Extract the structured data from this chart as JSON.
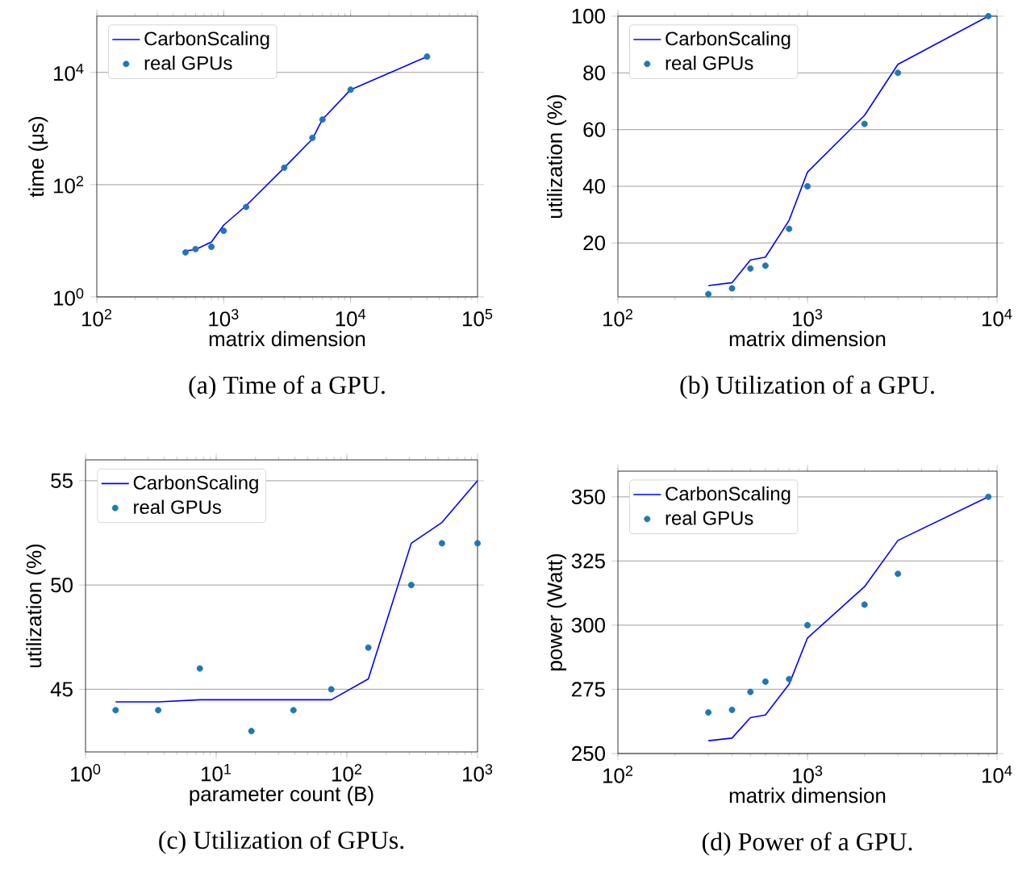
{
  "chart_data": [
    {
      "type": "line",
      "log": "xy",
      "grid": "y",
      "legend": "top left",
      "xlabel": "matrix dimension",
      "ylabel": "time (μs)",
      "annotations": [
        "(a)  Time of a GPU."
      ],
      "xlim": [
        100,
        100000
      ],
      "xticks": [
        {
          "value": 100,
          "label": "10$^{2}$"
        },
        {
          "value": 1000,
          "label": "10$^{3}$"
        },
        {
          "value": 10000,
          "label": "10$^{4}$"
        },
        {
          "value": 100000,
          "label": "10$^{5}$"
        }
      ],
      "ylim": [
        1,
        100000
      ],
      "yticks": [
        {
          "value": 1,
          "label": "10$^{0}$"
        },
        {
          "value": 100,
          "label": "10$^{2}$"
        },
        {
          "value": 10000,
          "label": "10$^{4}$"
        }
      ],
      "series": [
        {
          "name": "CarbonScaling",
          "color": "#0000ff",
          "marker": "none",
          "x": [
            500,
            600,
            800,
            1000,
            1500,
            3000,
            5000,
            6000,
            10000,
            40000
          ],
          "values": [
            6.6,
            7,
            9.5,
            19,
            42,
            200,
            650,
            1450,
            4900,
            19000
          ]
        },
        {
          "name": "real GPUs",
          "type": "scatter",
          "marker": "circle",
          "color": "#1f77b4",
          "x": [
            500,
            600,
            800,
            1000,
            1500,
            3000,
            5000,
            6000,
            10000,
            40000
          ],
          "values": [
            6.2,
            7.1,
            7.8,
            15,
            40,
            200,
            680,
            1440,
            4900,
            19000
          ]
        }
      ]
    },
    {
      "type": "line",
      "log": "x",
      "grid": "y",
      "legend": "top left",
      "xlabel": "matrix dimension",
      "ylabel": "utilization (%)",
      "annotations": [
        "(b)  Utilization of a GPU."
      ],
      "xlim": [
        100,
        10000
      ],
      "xticks": [
        {
          "value": 100,
          "label": "10$^{2}$"
        },
        {
          "value": 1000,
          "label": "10$^{3}$"
        },
        {
          "value": 10000,
          "label": "10$^{4}$"
        }
      ],
      "ylim": [
        1,
        100
      ],
      "yticks": [
        20,
        40,
        60,
        80,
        100
      ],
      "series": [
        {
          "name": "CarbonScaling",
          "color": "#0000ff",
          "marker": "none",
          "x": [
            300,
            400,
            500,
            600,
            800,
            1000,
            2000,
            3000,
            9000
          ],
          "values": [
            5,
            6,
            14,
            15,
            28,
            45,
            65,
            83,
            100
          ]
        },
        {
          "name": "real GPUs",
          "type": "scatter",
          "marker": "circle",
          "color": "#1f77b4",
          "x": [
            300,
            400,
            500,
            600,
            800,
            1000,
            2000,
            3000,
            9000
          ],
          "values": [
            2,
            4,
            11,
            12,
            25,
            40,
            62,
            80,
            100
          ]
        }
      ]
    },
    {
      "type": "line",
      "log": "x",
      "grid": "y",
      "legend": "top left",
      "xlabel": "parameter count (B)",
      "ylabel": "utilization (%)",
      "annotations": [
        "(c)  Utilization of GPUs."
      ],
      "xlim": [
        1,
        1000
      ],
      "xticks": [
        {
          "value": 1,
          "label": "10$^{0}$"
        },
        {
          "value": 10,
          "label": "10$^{1}$"
        },
        {
          "value": 100,
          "label": "10$^{2}$"
        },
        {
          "value": 1000,
          "label": "10$^{3}$"
        }
      ],
      "ylim": [
        42,
        56
      ],
      "yticks": [
        45,
        50,
        55
      ],
      "series": [
        {
          "name": "CarbonScaling",
          "color": "#0000ff",
          "marker": "none",
          "x": [
            1.7,
            3.6,
            7.5,
            18.6,
            39,
            76,
            146,
            311,
            534,
            1000
          ],
          "values": [
            44.4,
            44.4,
            44.5,
            44.5,
            44.5,
            44.5,
            45.5,
            52,
            53,
            55
          ]
        },
        {
          "name": "real GPUs",
          "type": "scatter",
          "marker": "circle",
          "color": "#1f77b4",
          "x": [
            1.7,
            3.6,
            7.5,
            18.6,
            39,
            76,
            146,
            311,
            534,
            1000
          ],
          "values": [
            44,
            44,
            46,
            43,
            44,
            45,
            47,
            50,
            52,
            52
          ]
        }
      ]
    },
    {
      "type": "line",
      "log": "x",
      "grid": "y",
      "legend": "top left",
      "xlabel": "matrix dimension",
      "ylabel": "power (Watt)",
      "annotations": [
        "(d)  Power of a GPU."
      ],
      "xlim": [
        100,
        10000
      ],
      "xticks": [
        {
          "value": 100,
          "label": "10$^{2}$"
        },
        {
          "value": 1000,
          "label": "10$^{3}$"
        },
        {
          "value": 10000,
          "label": "10$^{4}$"
        }
      ],
      "ylim": [
        250,
        360
      ],
      "yticks": [
        250,
        275,
        300,
        325,
        350
      ],
      "series": [
        {
          "name": "CarbonScaling",
          "color": "#0000ff",
          "marker": "none",
          "x": [
            300,
            400,
            500,
            600,
            800,
            1000,
            2000,
            3000,
            9000
          ],
          "values": [
            255,
            256,
            264,
            265,
            277,
            295,
            315,
            333,
            350
          ]
        },
        {
          "name": "real GPUs",
          "type": "scatter",
          "marker": "circle",
          "color": "#1f77b4",
          "x": [
            300,
            400,
            500,
            600,
            800,
            1000,
            2000,
            3000,
            9000
          ],
          "values": [
            266,
            267,
            274,
            278,
            279,
            300,
            308,
            320,
            350
          ]
        }
      ]
    }
  ]
}
